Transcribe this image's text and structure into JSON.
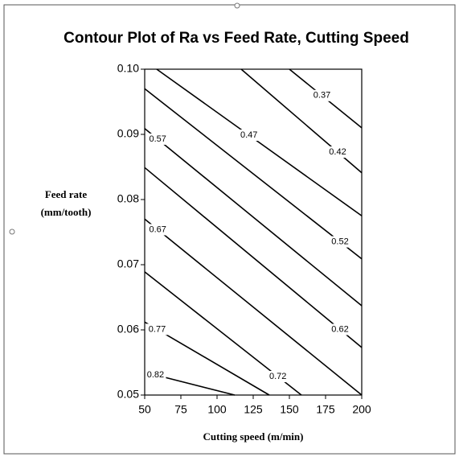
{
  "chart_data": {
    "type": "contour",
    "title": "Contour Plot of Ra vs Feed Rate, Cutting Speed",
    "xlabel": "Cutting speed (m/min)",
    "ylabel": [
      "Feed rate",
      "(mm/tooth)"
    ],
    "xlim": [
      50,
      200
    ],
    "xticks": [
      50,
      75,
      100,
      125,
      150,
      175,
      200
    ],
    "ylim": [
      0.05,
      0.1
    ],
    "yticks": [
      0.05,
      0.06,
      0.07,
      0.08,
      0.09,
      {
        "value": 0.1,
        "label": "0.10"
      }
    ],
    "color": "#000000",
    "contours": [
      {
        "level": 0.37,
        "x": [
          150,
          200
        ],
        "y": [
          0.1,
          0.091
        ]
      },
      {
        "level": 0.42,
        "x": [
          116.7,
          200
        ],
        "y": [
          0.1,
          0.0841
        ]
      },
      {
        "level": 0.47,
        "x": [
          58.3,
          200
        ],
        "y": [
          0.1,
          0.0775
        ]
      },
      {
        "level": 0.52,
        "x": [
          50,
          200
        ],
        "y": [
          0.097,
          0.0709
        ]
      },
      {
        "level": 0.57,
        "x": [
          50,
          200
        ],
        "y": [
          0.0909,
          0.0637
        ]
      },
      {
        "level": 0.62,
        "x": [
          50,
          200
        ],
        "y": [
          0.0849,
          0.0573
        ]
      },
      {
        "level": 0.67,
        "x": [
          50,
          200
        ],
        "y": [
          0.077,
          0.05
        ]
      },
      {
        "level": 0.72,
        "x": [
          50,
          158.3
        ],
        "y": [
          0.0689,
          0.05
        ]
      },
      {
        "level": 0.77,
        "x": [
          50,
          136.1
        ],
        "y": [
          0.0612,
          0.05
        ]
      },
      {
        "level": 0.82,
        "x": [
          50,
          112.2
        ],
        "y": [
          0.0535,
          0.05
        ]
      }
    ]
  }
}
